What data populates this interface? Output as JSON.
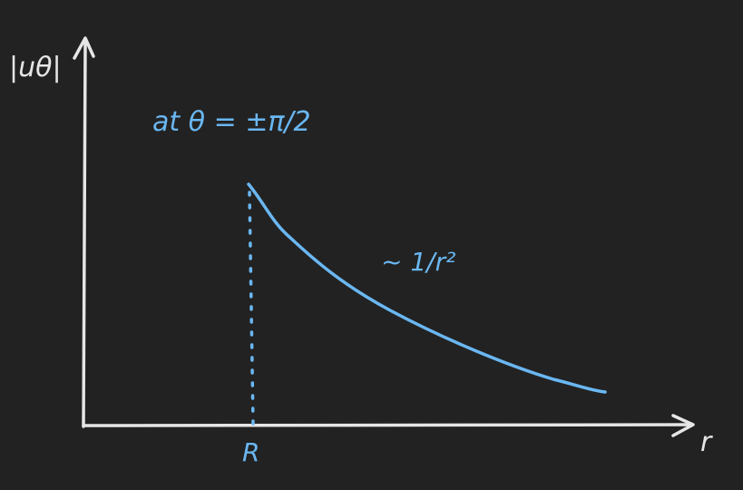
{
  "diagram": {
    "y_axis_label": "|uθ|",
    "x_axis_label": "r",
    "condition_label": "at θ = ±π/2",
    "curve_label": "~ 1/r²",
    "r_marker_label": "R",
    "colors": {
      "background": "#222222",
      "axes": "#e6e6e6",
      "curve": "#6ab7f2",
      "annotation": "#6ab7f2"
    }
  }
}
